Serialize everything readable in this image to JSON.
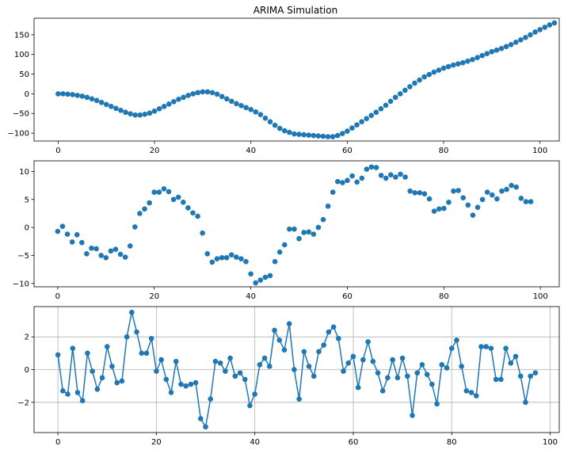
{
  "chart_data": [
    {
      "type": "scatter",
      "title": "ARIMA Simulation",
      "xlabel": "",
      "ylabel": "",
      "xlim": [
        -5,
        104
      ],
      "ylim": [
        -120,
        192
      ],
      "xticks": [
        0,
        20,
        40,
        60,
        80,
        100
      ],
      "yticks": [
        -100,
        -50,
        0,
        50,
        100,
        150
      ],
      "grid": false,
      "color": "#1f77b4",
      "series": [
        {
          "x_start": 0,
          "values": [
            0,
            0,
            -1,
            -2,
            -4,
            -6,
            -9,
            -13,
            -17,
            -22,
            -27,
            -32,
            -37,
            -42,
            -47,
            -51,
            -54,
            -54,
            -52,
            -49,
            -44,
            -38,
            -32,
            -26,
            -20,
            -14,
            -9,
            -4,
            0,
            3,
            5,
            5,
            3,
            -1,
            -7,
            -13,
            -19,
            -25,
            -30,
            -35,
            -40,
            -46,
            -53,
            -62,
            -71,
            -80,
            -88,
            -94,
            -98,
            -102,
            -103,
            -104,
            -105,
            -106,
            -107,
            -108,
            -109,
            -109,
            -106,
            -101,
            -95,
            -87,
            -79,
            -71,
            -63,
            -55,
            -47,
            -38,
            -29,
            -19,
            -9,
            0,
            9,
            18,
            27,
            35,
            43,
            49,
            55,
            60,
            65,
            69,
            73,
            76,
            79,
            83,
            87,
            92,
            97,
            102,
            107,
            111,
            115,
            120,
            125,
            131,
            137,
            143,
            150,
            157,
            163,
            169,
            175,
            180
          ]
        }
      ]
    },
    {
      "type": "scatter",
      "title": "",
      "xlabel": "",
      "ylabel": "",
      "xlim": [
        -4.9,
        103.9
      ],
      "ylim": [
        -10.6,
        11.9
      ],
      "xticks": [
        0,
        20,
        40,
        60,
        80,
        100
      ],
      "yticks": [
        -10,
        -5,
        0,
        5,
        10
      ],
      "grid": false,
      "color": "#1f77b4",
      "series": [
        {
          "x_start": 0,
          "values": [
            -0.7,
            0.2,
            -1.2,
            -2.6,
            -1.3,
            -2.7,
            -4.7,
            -3.7,
            -3.8,
            -5.0,
            -5.4,
            -4.2,
            -3.9,
            -4.8,
            -5.3,
            -3.3,
            0.1,
            2.5,
            3.3,
            4.4,
            6.3,
            6.3,
            6.9,
            6.4,
            5.0,
            5.4,
            4.5,
            3.5,
            2.6,
            2.0,
            -1.0,
            -4.7,
            -6.2,
            -5.6,
            -5.4,
            -5.4,
            -4.9,
            -5.3,
            -5.6,
            -6.1,
            -8.3,
            -9.9,
            -9.4,
            -8.9,
            -8.6,
            -6.1,
            -4.4,
            -3.1,
            -0.3,
            -0.3,
            -2.0,
            -0.9,
            -0.8,
            -1.2,
            0.0,
            1.4,
            3.8,
            6.3,
            8.2,
            8.0,
            8.4,
            9.2,
            8.1,
            8.8,
            10.4,
            10.8,
            10.7,
            9.3,
            8.8,
            9.4,
            9.0,
            9.5,
            9.0,
            6.5,
            6.2,
            6.2,
            6.0,
            5.1,
            2.9,
            3.3,
            3.4,
            4.5,
            6.5,
            6.6,
            5.3,
            4.0,
            2.2,
            3.6,
            5.0,
            6.3,
            5.8,
            5.1,
            6.5,
            6.8,
            7.5,
            7.2,
            5.2,
            4.6,
            4.6
          ]
        }
      ]
    },
    {
      "type": "line",
      "title": "",
      "xlabel": "",
      "ylabel": "",
      "xlim": [
        -4.85,
        101.85
      ],
      "ylim": [
        -3.85,
        3.85
      ],
      "xticks": [
        0,
        20,
        40,
        60,
        80,
        100
      ],
      "yticks": [
        -2,
        0,
        2
      ],
      "grid": true,
      "color": "#1f77b4",
      "series": [
        {
          "x_start": 0,
          "values": [
            0.9,
            -1.3,
            -1.5,
            1.3,
            -1.4,
            -1.9,
            1.0,
            -0.1,
            -1.2,
            -0.5,
            1.4,
            0.2,
            -0.8,
            -0.7,
            2.0,
            3.5,
            2.3,
            1.0,
            1.0,
            1.9,
            -0.1,
            0.6,
            -0.6,
            -1.4,
            0.5,
            -0.9,
            -1.0,
            -0.9,
            -0.8,
            -3.0,
            -3.5,
            -1.8,
            0.5,
            0.4,
            -0.1,
            0.7,
            -0.4,
            -0.2,
            -0.6,
            -2.2,
            -1.5,
            0.3,
            0.7,
            0.2,
            2.4,
            1.8,
            1.2,
            2.8,
            0.0,
            -1.8,
            1.1,
            0.2,
            -0.4,
            1.1,
            1.5,
            2.3,
            2.6,
            1.9,
            -0.1,
            0.4,
            0.8,
            -1.1,
            0.6,
            1.7,
            0.5,
            -0.2,
            -1.3,
            -0.5,
            0.6,
            -0.5,
            0.7,
            -0.4,
            -2.8,
            -0.2,
            0.3,
            -0.3,
            -0.9,
            -2.1,
            0.3,
            0.1,
            1.3,
            1.8,
            0.2,
            -1.3,
            -1.4,
            -1.6,
            1.4,
            1.4,
            1.3,
            -0.6,
            -0.6,
            1.3,
            0.4,
            0.8,
            -0.4,
            -2.0,
            -0.4,
            -0.2
          ]
        }
      ]
    }
  ]
}
